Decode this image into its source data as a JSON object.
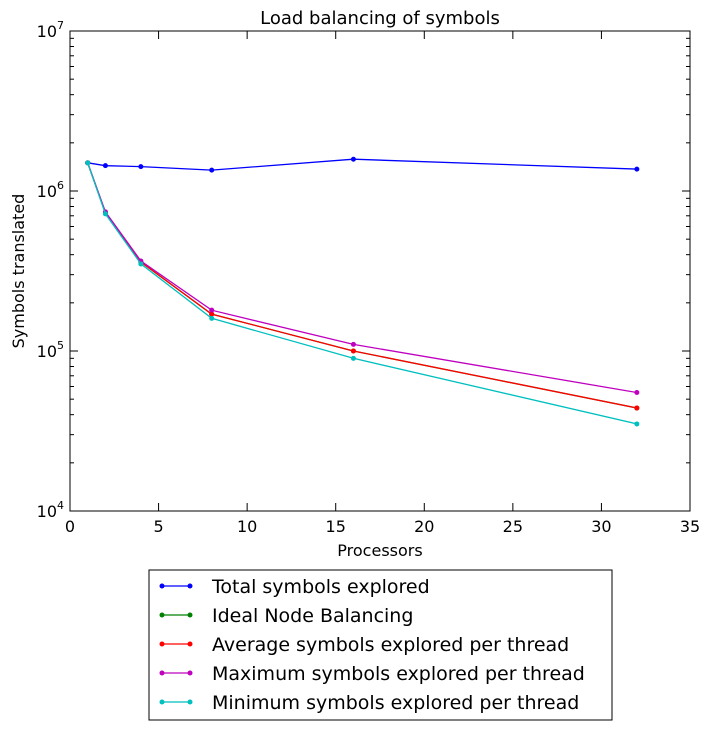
{
  "chart_data": {
    "type": "line",
    "title": "Load balancing of symbols",
    "xlabel": "Processors",
    "ylabel": "Symbols translated",
    "xlim": [
      0,
      35
    ],
    "ylim": [
      10000,
      10000000
    ],
    "yscale": "log",
    "x_ticks": [
      0,
      5,
      10,
      15,
      20,
      25,
      30,
      35
    ],
    "x_tick_labels": [
      "0",
      "5",
      "10",
      "15",
      "20",
      "25",
      "30",
      "35"
    ],
    "y_ticks": [
      10000,
      100000,
      1000000,
      10000000
    ],
    "y_tick_labels": [
      {
        "base": "10",
        "exp": "4"
      },
      {
        "base": "10",
        "exp": "5"
      },
      {
        "base": "10",
        "exp": "6"
      },
      {
        "base": "10",
        "exp": "7"
      }
    ],
    "grid": false,
    "legend_position": "below plot",
    "series": [
      {
        "name": "Total symbols explored",
        "color": "#0000ff",
        "x": [
          1,
          2,
          4,
          8,
          16,
          32
        ],
        "y": [
          1500000,
          1440000,
          1420000,
          1350000,
          1580000,
          1370000
        ]
      },
      {
        "name": "Ideal Node Balancing",
        "color": "#008000",
        "x": [
          1,
          2,
          4,
          8,
          16,
          32
        ],
        "y": [
          1500000,
          730000,
          360000,
          170000,
          100000,
          44000
        ]
      },
      {
        "name": " Average symbols explored per thread",
        "color": "#ff0000",
        "x": [
          1,
          2,
          4,
          8,
          16,
          32
        ],
        "y": [
          1500000,
          730000,
          360000,
          170000,
          100000,
          44000
        ]
      },
      {
        "name": "Maximum symbols explored per thread",
        "color": "#bf00bf",
        "x": [
          1,
          2,
          4,
          8,
          16,
          32
        ],
        "y": [
          1500000,
          740000,
          365000,
          180000,
          110000,
          55000
        ]
      },
      {
        "name": "Minimum symbols explored per thread",
        "color": "#00bfbf",
        "x": [
          1,
          2,
          4,
          8,
          16,
          32
        ],
        "y": [
          1500000,
          720000,
          350000,
          160000,
          90000,
          35000
        ]
      }
    ]
  }
}
